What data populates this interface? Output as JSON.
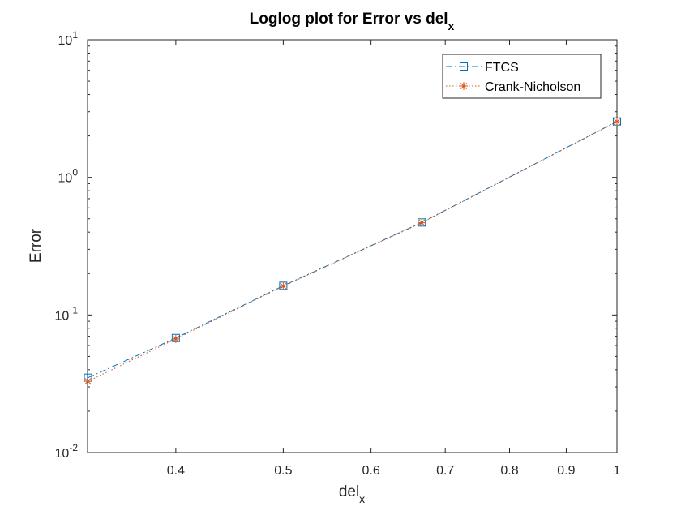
{
  "chart_data": {
    "type": "line",
    "title": {
      "main": "Loglog plot for Error vs del",
      "sub": "x"
    },
    "xlabel": {
      "main": "del",
      "sub": "x"
    },
    "ylabel": "Error",
    "xscale": "log",
    "yscale": "log",
    "xlim": [
      0.333,
      1.0
    ],
    "ylim": [
      0.01,
      10
    ],
    "grid": false,
    "box": true,
    "legend_location": "top-right",
    "x_ticks": [
      {
        "value": 0.4,
        "label": "0.4"
      },
      {
        "value": 0.5,
        "label": "0.5"
      },
      {
        "value": 0.6,
        "label": "0.6"
      },
      {
        "value": 0.7,
        "label": "0.7"
      },
      {
        "value": 0.8,
        "label": "0.8"
      },
      {
        "value": 0.9,
        "label": "0.9"
      },
      {
        "value": 1.0,
        "label": "1"
      }
    ],
    "y_ticks": [
      {
        "value": 0.01,
        "base": "10",
        "exp": "-2"
      },
      {
        "value": 0.1,
        "base": "10",
        "exp": "-1"
      },
      {
        "value": 1,
        "base": "10",
        "exp": "0"
      },
      {
        "value": 10,
        "base": "10",
        "exp": "1"
      }
    ],
    "x": [
      0.3333,
      0.4,
      0.5,
      0.6667,
      1.0
    ],
    "series": [
      {
        "name": "FTCS",
        "values": [
          0.035,
          0.068,
          0.163,
          0.47,
          2.55
        ],
        "color": "#0072BD",
        "line_style": "dash-dot",
        "marker": "square"
      },
      {
        "name": "Crank-Nicholson",
        "values": [
          0.033,
          0.067,
          0.162,
          0.468,
          2.54
        ],
        "color": "#D95319",
        "line_style": "dotted",
        "marker": "asterisk"
      }
    ]
  }
}
